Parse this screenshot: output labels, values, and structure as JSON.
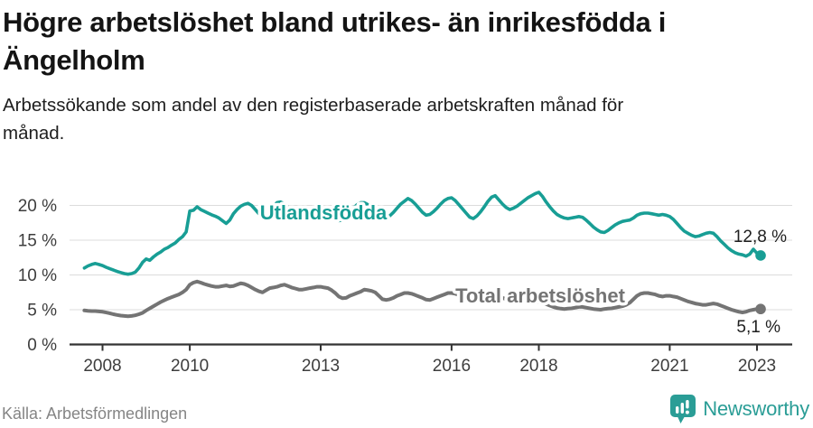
{
  "title": "Högre arbetslöshet bland utrikes- än inrikesfödda i\nÄngelholm",
  "subtitle": "Arbetssökande som andel av den registerbaserade arbetskraften månad för\nmånad.",
  "source": "Källa: Arbetsförmedlingen",
  "brand": {
    "name": "Newsworthy",
    "color": "#2a9d96"
  },
  "colors": {
    "series_foreign_born": "#189e95",
    "series_total": "#747474",
    "gridline": "#dcdcdc",
    "axis": "#333333",
    "tick_text": "#3d3d3d",
    "annotation_text": "#1f1f1f",
    "title_text": "#141414",
    "source_text": "#858585",
    "brand_teal": "#2a9d96"
  },
  "chart_data": {
    "type": "line",
    "unit": "%",
    "frequency": "monthly",
    "x_start": "2007-08",
    "x_end": "2023-02",
    "x_ticks": [
      2008,
      2010,
      2013,
      2016,
      2018,
      2021,
      2023
    ],
    "y_ticks": [
      0,
      5,
      10,
      15,
      20
    ],
    "y_tick_labels": [
      "0 %",
      "5 %",
      "10 %",
      "15 %",
      "20 %"
    ],
    "ylim": [
      0,
      23
    ],
    "grid": true,
    "legend_position": "inline-labels",
    "series": [
      {
        "name": "Utlandsfödda",
        "color": "#189e95",
        "end_label": "12,8 %",
        "last_value": 12.8,
        "values": [
          11.0,
          11.3,
          11.5,
          11.65,
          11.5,
          11.35,
          11.1,
          10.9,
          10.7,
          10.5,
          10.35,
          10.2,
          10.1,
          10.2,
          10.4,
          11.0,
          11.8,
          12.3,
          12.1,
          12.6,
          13.0,
          13.3,
          13.7,
          13.95,
          14.3,
          14.6,
          15.1,
          15.5,
          16.2,
          19.2,
          19.3,
          19.8,
          19.4,
          19.15,
          18.9,
          18.65,
          18.45,
          18.2,
          17.8,
          17.4,
          17.9,
          18.8,
          19.4,
          19.9,
          20.15,
          20.3,
          20.0,
          19.4,
          18.8,
          18.5,
          18.7,
          19.3,
          19.9,
          20.4,
          20.5,
          20.2,
          19.7,
          19.2,
          18.7,
          18.3,
          18.0,
          17.9,
          18.1,
          18.5,
          19.0,
          19.4,
          19.7,
          19.4,
          18.9,
          18.3,
          17.8,
          17.9,
          18.4,
          19.0,
          19.6,
          20.1,
          20.4,
          20.4,
          20.1,
          19.6,
          19.1,
          18.7,
          18.4,
          18.2,
          18.5,
          19.0,
          19.6,
          20.2,
          20.6,
          21.0,
          20.7,
          20.2,
          19.6,
          19.0,
          18.6,
          18.7,
          19.1,
          19.6,
          20.2,
          20.7,
          21.0,
          21.1,
          20.7,
          20.1,
          19.5,
          18.9,
          18.3,
          18.1,
          18.5,
          19.1,
          19.8,
          20.6,
          21.2,
          21.4,
          20.8,
          20.2,
          19.7,
          19.4,
          19.6,
          19.9,
          20.3,
          20.7,
          21.1,
          21.4,
          21.7,
          21.9,
          21.3,
          20.5,
          19.8,
          19.2,
          18.7,
          18.4,
          18.2,
          18.1,
          18.2,
          18.3,
          18.4,
          18.3,
          17.9,
          17.4,
          16.9,
          16.5,
          16.2,
          16.1,
          16.4,
          16.8,
          17.2,
          17.5,
          17.7,
          17.8,
          17.9,
          18.2,
          18.6,
          18.8,
          18.9,
          18.9,
          18.8,
          18.7,
          18.6,
          18.7,
          18.6,
          18.4,
          18.0,
          17.4,
          16.8,
          16.3,
          16.0,
          15.7,
          15.5,
          15.6,
          15.8,
          16.0,
          16.1,
          16.0,
          15.5,
          14.9,
          14.4,
          13.9,
          13.5,
          13.2,
          13.0,
          12.9,
          12.7,
          13.0,
          13.7,
          13.1,
          12.8
        ]
      },
      {
        "name": "Total arbetslöshet",
        "color": "#747474",
        "end_label": "5,1 %",
        "last_value": 5.1,
        "values": [
          4.9,
          4.85,
          4.8,
          4.8,
          4.75,
          4.7,
          4.6,
          4.5,
          4.35,
          4.25,
          4.15,
          4.1,
          4.05,
          4.1,
          4.2,
          4.35,
          4.55,
          4.9,
          5.2,
          5.5,
          5.8,
          6.1,
          6.35,
          6.6,
          6.8,
          7.0,
          7.2,
          7.5,
          7.9,
          8.6,
          8.9,
          9.05,
          8.9,
          8.7,
          8.55,
          8.4,
          8.3,
          8.3,
          8.4,
          8.5,
          8.35,
          8.4,
          8.6,
          8.8,
          8.7,
          8.5,
          8.2,
          7.9,
          7.65,
          7.5,
          7.8,
          8.1,
          8.2,
          8.3,
          8.5,
          8.6,
          8.4,
          8.2,
          8.05,
          7.9,
          7.9,
          8.0,
          8.1,
          8.2,
          8.3,
          8.3,
          8.2,
          8.1,
          7.8,
          7.4,
          6.9,
          6.65,
          6.7,
          7.0,
          7.2,
          7.4,
          7.6,
          7.9,
          7.8,
          7.7,
          7.5,
          7.0,
          6.5,
          6.4,
          6.5,
          6.7,
          7.0,
          7.2,
          7.4,
          7.4,
          7.3,
          7.1,
          6.9,
          6.7,
          6.45,
          6.4,
          6.6,
          6.8,
          7.0,
          7.2,
          7.4,
          7.4,
          7.3,
          7.1,
          6.9,
          6.7,
          6.5,
          6.4,
          6.5,
          6.6,
          6.8,
          6.9,
          7.0,
          7.0,
          6.9,
          6.7,
          6.5,
          6.3,
          6.1,
          6.0,
          6.0,
          6.05,
          6.1,
          6.15,
          6.2,
          6.1,
          6.0,
          5.8,
          5.6,
          5.4,
          5.25,
          5.15,
          5.1,
          5.15,
          5.2,
          5.3,
          5.4,
          5.4,
          5.3,
          5.2,
          5.1,
          5.05,
          5.0,
          5.1,
          5.15,
          5.2,
          5.3,
          5.4,
          5.5,
          5.7,
          6.0,
          6.5,
          7.0,
          7.3,
          7.4,
          7.4,
          7.3,
          7.2,
          7.0,
          6.9,
          7.0,
          7.0,
          6.9,
          6.8,
          6.6,
          6.4,
          6.2,
          6.05,
          5.9,
          5.8,
          5.7,
          5.7,
          5.8,
          5.9,
          5.8,
          5.6,
          5.4,
          5.2,
          5.0,
          4.85,
          4.7,
          4.6,
          4.7,
          4.9,
          5.0,
          5.1,
          5.1
        ]
      }
    ]
  }
}
